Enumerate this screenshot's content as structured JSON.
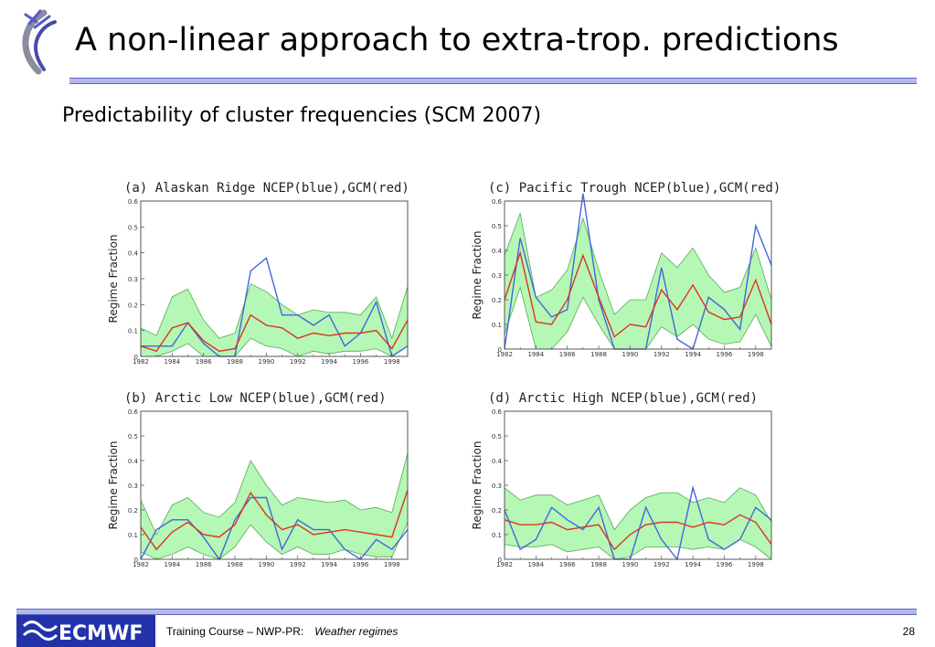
{
  "slide": {
    "title": "A non-linear approach to extra-trop. predictions",
    "subtitle": "Predictability of cluster frequencies (SCM 2007)",
    "footer": {
      "course": "Training Course – NWP-PR:",
      "topic": "Weather regimes",
      "page": "28",
      "logo_text": "ECMWF"
    }
  },
  "colors": {
    "ncep": "#4466dd",
    "gcm": "#dd3322",
    "spread_fill": "#b5f7b5",
    "spread_edge": "#55aa55",
    "rule": "#b3b8e8"
  },
  "chart_data": [
    {
      "type": "line",
      "title": "(a)   Alaskan Ridge    NCEP(blue),GCM(red)",
      "ylabel": "Regime Fraction",
      "ylim": [
        0,
        0.6
      ],
      "yticks": [
        "0",
        "0.1",
        "0.2",
        "0.3",
        "0.4",
        "0.5",
        "0.6"
      ],
      "xlim": [
        1982,
        1999
      ],
      "xticks": [
        "1982",
        "1984",
        "1986",
        "1988",
        "1990",
        "1992",
        "1994",
        "1996",
        "1998"
      ],
      "x": [
        1982,
        1983,
        1984,
        1985,
        1986,
        1987,
        1988,
        1989,
        1990,
        1991,
        1992,
        1993,
        1994,
        1995,
        1996,
        1997,
        1998,
        1999
      ],
      "series": [
        {
          "values": [
            0.04,
            0.04,
            0.04,
            0.13,
            0.05,
            0.0,
            0.0,
            0.33,
            0.38,
            0.16,
            0.16,
            0.12,
            0.16,
            0.04,
            0.09,
            0.21,
            0.0,
            0.04
          ]
        },
        {
          "values": [
            0.04,
            0.02,
            0.11,
            0.13,
            0.06,
            0.02,
            0.03,
            0.16,
            0.12,
            0.11,
            0.07,
            0.09,
            0.08,
            0.09,
            0.09,
            0.1,
            0.03,
            0.14
          ]
        }
      ],
      "band_upper": [
        0.11,
        0.08,
        0.23,
        0.26,
        0.14,
        0.07,
        0.09,
        0.28,
        0.25,
        0.2,
        0.16,
        0.18,
        0.17,
        0.17,
        0.16,
        0.23,
        0.07,
        0.27
      ],
      "band_lower": [
        0.0,
        0.0,
        0.02,
        0.05,
        0.0,
        0.0,
        0.0,
        0.07,
        0.04,
        0.03,
        0.0,
        0.02,
        0.01,
        0.02,
        0.02,
        0.03,
        0.0,
        0.04
      ]
    },
    {
      "type": "line",
      "title": "(c)   Pacific Trough  NCEP(blue),GCM(red)",
      "ylabel": "Regime Fraction",
      "ylim": [
        0,
        0.6
      ],
      "yticks": [
        "0",
        "0.1",
        "0.2",
        "0.3",
        "0.4",
        "0.5",
        "0.6"
      ],
      "xlim": [
        1982,
        1999
      ],
      "xticks": [
        "1982",
        "1984",
        "1986",
        "1988",
        "1990",
        "1992",
        "1994",
        "1996",
        "1998"
      ],
      "x": [
        1982,
        1983,
        1984,
        1985,
        1986,
        1987,
        1988,
        1989,
        1990,
        1991,
        1992,
        1993,
        1994,
        1995,
        1996,
        1997,
        1998,
        1999
      ],
      "series": [
        {
          "values": [
            0.0,
            0.45,
            0.21,
            0.13,
            0.16,
            0.63,
            0.2,
            0.0,
            0.0,
            0.0,
            0.33,
            0.04,
            0.0,
            0.21,
            0.16,
            0.08,
            0.5,
            0.34
          ]
        },
        {
          "values": [
            0.2,
            0.39,
            0.11,
            0.1,
            0.2,
            0.38,
            0.21,
            0.05,
            0.1,
            0.09,
            0.24,
            0.16,
            0.26,
            0.15,
            0.12,
            0.13,
            0.28,
            0.1
          ]
        }
      ],
      "band_upper": [
        0.38,
        0.55,
        0.21,
        0.24,
        0.32,
        0.53,
        0.32,
        0.14,
        0.2,
        0.2,
        0.39,
        0.33,
        0.41,
        0.3,
        0.23,
        0.25,
        0.41,
        0.2
      ],
      "band_lower": [
        0.06,
        0.25,
        0.0,
        0.0,
        0.07,
        0.21,
        0.1,
        0.0,
        0.0,
        0.0,
        0.09,
        0.05,
        0.1,
        0.04,
        0.02,
        0.03,
        0.14,
        0.01
      ]
    },
    {
      "type": "line",
      "title": "(b)   Arctic Low        NCEP(blue),GCM(red)",
      "ylabel": "Regime Fraction",
      "ylim": [
        0,
        0.6
      ],
      "yticks": [
        "0",
        "0.1",
        "0.2",
        "0.3",
        "0.4",
        "0.5",
        "0.6"
      ],
      "xlim": [
        1982,
        1999
      ],
      "xticks": [
        "1982",
        "1984",
        "1986",
        "1988",
        "1990",
        "1992",
        "1994",
        "1996",
        "1998"
      ],
      "x": [
        1982,
        1983,
        1984,
        1985,
        1986,
        1987,
        1988,
        1989,
        1990,
        1991,
        1992,
        1993,
        1994,
        1995,
        1996,
        1997,
        1998,
        1999
      ],
      "series": [
        {
          "values": [
            0.0,
            0.12,
            0.16,
            0.16,
            0.09,
            0.0,
            0.16,
            0.25,
            0.25,
            0.04,
            0.16,
            0.12,
            0.12,
            0.04,
            0.0,
            0.08,
            0.04,
            0.12
          ]
        },
        {
          "values": [
            0.13,
            0.04,
            0.11,
            0.15,
            0.1,
            0.09,
            0.14,
            0.27,
            0.18,
            0.12,
            0.14,
            0.1,
            0.11,
            0.12,
            0.11,
            0.1,
            0.09,
            0.28
          ]
        }
      ],
      "band_upper": [
        0.24,
        0.1,
        0.22,
        0.25,
        0.19,
        0.17,
        0.23,
        0.4,
        0.3,
        0.22,
        0.25,
        0.24,
        0.23,
        0.24,
        0.2,
        0.21,
        0.19,
        0.43
      ],
      "band_lower": [
        0.03,
        0.0,
        0.02,
        0.05,
        0.02,
        0.0,
        0.05,
        0.14,
        0.07,
        0.02,
        0.05,
        0.02,
        0.02,
        0.04,
        0.02,
        0.01,
        0.01,
        0.15
      ]
    },
    {
      "type": "line",
      "title": "(d)   Arctic   High     NCEP(blue),GCM(red)",
      "ylabel": "Regime Fraction",
      "ylim": [
        0,
        0.6
      ],
      "yticks": [
        "0",
        "0.1",
        "0.2",
        "0.3",
        "0.4",
        "0.5",
        "0.6"
      ],
      "xlim": [
        1982,
        1999
      ],
      "xticks": [
        "1982",
        "1984",
        "1986",
        "1988",
        "1990",
        "1992",
        "1994",
        "1996",
        "1998"
      ],
      "x": [
        1982,
        1983,
        1984,
        1985,
        1986,
        1987,
        1988,
        1989,
        1990,
        1991,
        1992,
        1993,
        1994,
        1995,
        1996,
        1997,
        1998,
        1999
      ],
      "series": [
        {
          "values": [
            0.2,
            0.04,
            0.08,
            0.21,
            0.16,
            0.12,
            0.21,
            0.0,
            0.0,
            0.21,
            0.08,
            0.0,
            0.29,
            0.08,
            0.04,
            0.08,
            0.21,
            0.16
          ]
        },
        {
          "values": [
            0.16,
            0.14,
            0.14,
            0.15,
            0.12,
            0.13,
            0.14,
            0.04,
            0.1,
            0.14,
            0.15,
            0.15,
            0.13,
            0.15,
            0.14,
            0.18,
            0.15,
            0.06
          ]
        }
      ],
      "band_upper": [
        0.29,
        0.24,
        0.26,
        0.26,
        0.22,
        0.24,
        0.26,
        0.12,
        0.2,
        0.25,
        0.27,
        0.27,
        0.23,
        0.25,
        0.23,
        0.29,
        0.26,
        0.15
      ],
      "band_lower": [
        0.06,
        0.05,
        0.05,
        0.06,
        0.03,
        0.04,
        0.05,
        0.0,
        0.01,
        0.05,
        0.05,
        0.05,
        0.04,
        0.05,
        0.04,
        0.08,
        0.05,
        0.0
      ]
    }
  ]
}
